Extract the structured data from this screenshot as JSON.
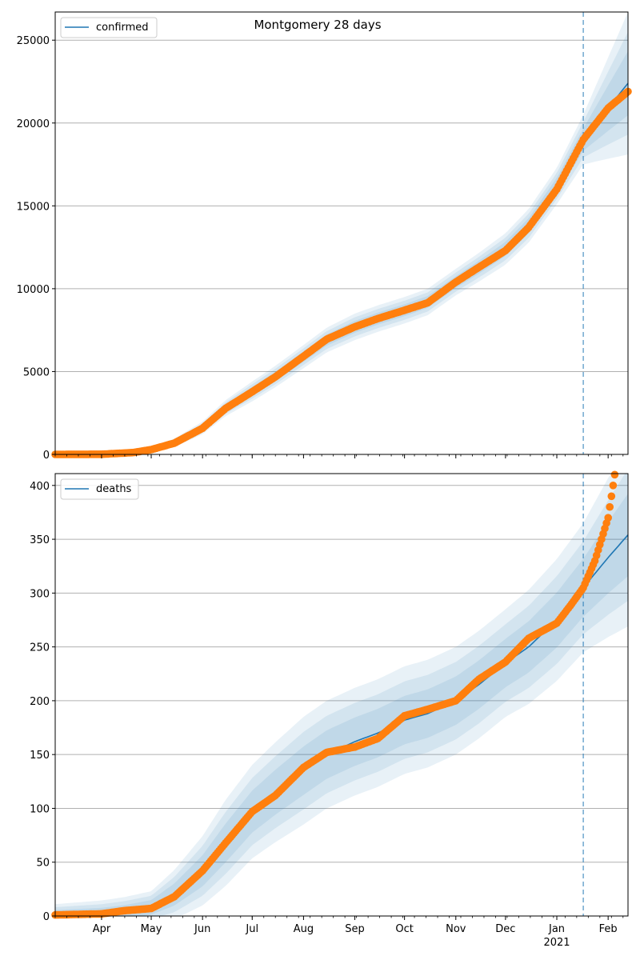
{
  "figure": {
    "title": "Montgomery 28 days"
  },
  "colors": {
    "line": "#1f77b4",
    "points": "#ff7f0e",
    "band": "#1f77b4",
    "grid": "#b0b0b0",
    "vline": "#1f77b4"
  },
  "chart_data": [
    {
      "type": "line",
      "legend": "top-left",
      "grid": "y",
      "ylim": [
        0,
        26700
      ],
      "yticks": [
        0,
        5000,
        10000,
        15000,
        20000,
        25000
      ],
      "forecast_start": "2021-01-17",
      "xlim": [
        "2020-03-04",
        "2021-02-13"
      ],
      "series": [
        {
          "name": "confirmed",
          "kind": "model",
          "points": [
            [
              "2020-03-04",
              0
            ],
            [
              "2020-04-01",
              10
            ],
            [
              "2020-04-20",
              120
            ],
            [
              "2020-05-01",
              300
            ],
            [
              "2020-05-15",
              700
            ],
            [
              "2020-06-01",
              1600
            ],
            [
              "2020-06-15",
              2800
            ],
            [
              "2020-07-01",
              3800
            ],
            [
              "2020-07-15",
              4700
            ],
            [
              "2020-08-01",
              5900
            ],
            [
              "2020-08-15",
              6900
            ],
            [
              "2020-09-01",
              7700
            ],
            [
              "2020-09-15",
              8200
            ],
            [
              "2020-10-01",
              8700
            ],
            [
              "2020-10-15",
              9200
            ],
            [
              "2020-11-01",
              10400
            ],
            [
              "2020-11-15",
              11300
            ],
            [
              "2020-12-01",
              12400
            ],
            [
              "2020-12-15",
              13800
            ],
            [
              "2021-01-01",
              16200
            ],
            [
              "2021-01-17",
              19000
            ],
            [
              "2021-02-01",
              20900
            ],
            [
              "2021-02-13",
              22400
            ]
          ],
          "band_halfwidth": [
            [
              "2020-03-04",
              0
            ],
            [
              "2020-05-01",
              150
            ],
            [
              "2020-07-01",
              600
            ],
            [
              "2020-09-01",
              800
            ],
            [
              "2020-11-01",
              800
            ],
            [
              "2021-01-01",
              1100
            ],
            [
              "2021-01-17",
              1500
            ],
            [
              "2021-02-13",
              4300
            ]
          ]
        },
        {
          "name": "",
          "kind": "observed",
          "points": [
            [
              "2020-03-04",
              0
            ],
            [
              "2020-04-01",
              10
            ],
            [
              "2020-04-20",
              110
            ],
            [
              "2020-05-01",
              290
            ],
            [
              "2020-05-15",
              680
            ],
            [
              "2020-06-01",
              1580
            ],
            [
              "2020-06-15",
              2780
            ],
            [
              "2020-07-01",
              3780
            ],
            [
              "2020-07-15",
              4680
            ],
            [
              "2020-08-01",
              5920
            ],
            [
              "2020-08-15",
              6950
            ],
            [
              "2020-09-01",
              7700
            ],
            [
              "2020-09-15",
              8200
            ],
            [
              "2020-10-01",
              8700
            ],
            [
              "2020-10-15",
              9150
            ],
            [
              "2020-11-01",
              10400
            ],
            [
              "2020-11-15",
              11300
            ],
            [
              "2020-12-01",
              12300
            ],
            [
              "2020-12-15",
              13700
            ],
            [
              "2021-01-01",
              16000
            ],
            [
              "2021-01-17",
              19000
            ],
            [
              "2021-02-01",
              20900
            ],
            [
              "2021-02-13",
              21900
            ]
          ]
        }
      ]
    },
    {
      "type": "line",
      "legend": "top-left",
      "grid": "y",
      "ylim": [
        0,
        411
      ],
      "yticks": [
        0,
        50,
        100,
        150,
        200,
        250,
        300,
        350,
        400
      ],
      "forecast_start": "2021-01-17",
      "xlim": [
        "2020-03-04",
        "2021-02-13"
      ],
      "xtick_labels": [
        "Apr",
        "May",
        "Jun",
        "Jul",
        "Aug",
        "Sep",
        "Oct",
        "Nov",
        "Dec",
        "Jan",
        "Feb"
      ],
      "xtick_dates": [
        "2020-04-01",
        "2020-05-01",
        "2020-06-01",
        "2020-07-01",
        "2020-08-01",
        "2020-09-01",
        "2020-10-01",
        "2020-11-01",
        "2020-12-01",
        "2021-01-01",
        "2021-02-01"
      ],
      "year_label": "2021",
      "series": [
        {
          "name": "deaths",
          "kind": "model",
          "points": [
            [
              "2020-03-04",
              1
            ],
            [
              "2020-04-01",
              2
            ],
            [
              "2020-04-15",
              4
            ],
            [
              "2020-05-01",
              8
            ],
            [
              "2020-05-15",
              20
            ],
            [
              "2020-06-01",
              42
            ],
            [
              "2020-06-15",
              68
            ],
            [
              "2020-07-01",
              97
            ],
            [
              "2020-07-15",
              115
            ],
            [
              "2020-08-01",
              135
            ],
            [
              "2020-08-15",
              150
            ],
            [
              "2020-09-01",
              162
            ],
            [
              "2020-09-15",
              170
            ],
            [
              "2020-10-01",
              182
            ],
            [
              "2020-10-15",
              188
            ],
            [
              "2020-11-01",
              200
            ],
            [
              "2020-11-15",
              215
            ],
            [
              "2020-12-01",
              235
            ],
            [
              "2020-12-15",
              250
            ],
            [
              "2021-01-01",
              275
            ],
            [
              "2021-01-17",
              305
            ],
            [
              "2021-02-01",
              333
            ],
            [
              "2021-02-13",
              354
            ]
          ],
          "band_halfwidth": [
            [
              "2020-03-04",
              10
            ],
            [
              "2020-05-01",
              15
            ],
            [
              "2020-06-15",
              40
            ],
            [
              "2020-08-01",
              50
            ],
            [
              "2020-10-01",
              50
            ],
            [
              "2020-12-01",
              50
            ],
            [
              "2021-01-17",
              60
            ],
            [
              "2021-02-13",
              85
            ]
          ]
        },
        {
          "name": "",
          "kind": "observed",
          "points": [
            [
              "2020-03-04",
              1
            ],
            [
              "2020-04-01",
              2
            ],
            [
              "2020-04-15",
              5
            ],
            [
              "2020-05-01",
              7
            ],
            [
              "2020-05-15",
              18
            ],
            [
              "2020-06-01",
              42
            ],
            [
              "2020-06-15",
              68
            ],
            [
              "2020-07-01",
              97
            ],
            [
              "2020-07-15",
              112
            ],
            [
              "2020-08-01",
              138
            ],
            [
              "2020-08-15",
              152
            ],
            [
              "2020-09-01",
              157
            ],
            [
              "2020-09-15",
              165
            ],
            [
              "2020-10-01",
              186
            ],
            [
              "2020-10-15",
              192
            ],
            [
              "2020-11-01",
              200
            ],
            [
              "2020-11-15",
              220
            ],
            [
              "2020-12-01",
              236
            ],
            [
              "2020-12-15",
              258
            ],
            [
              "2021-01-01",
              272
            ],
            [
              "2021-01-10",
              290
            ],
            [
              "2021-01-17",
              305
            ],
            [
              "2021-01-24",
              330
            ],
            [
              "2021-02-01",
              370
            ],
            [
              "2021-02-05",
              410
            ]
          ]
        }
      ]
    }
  ]
}
